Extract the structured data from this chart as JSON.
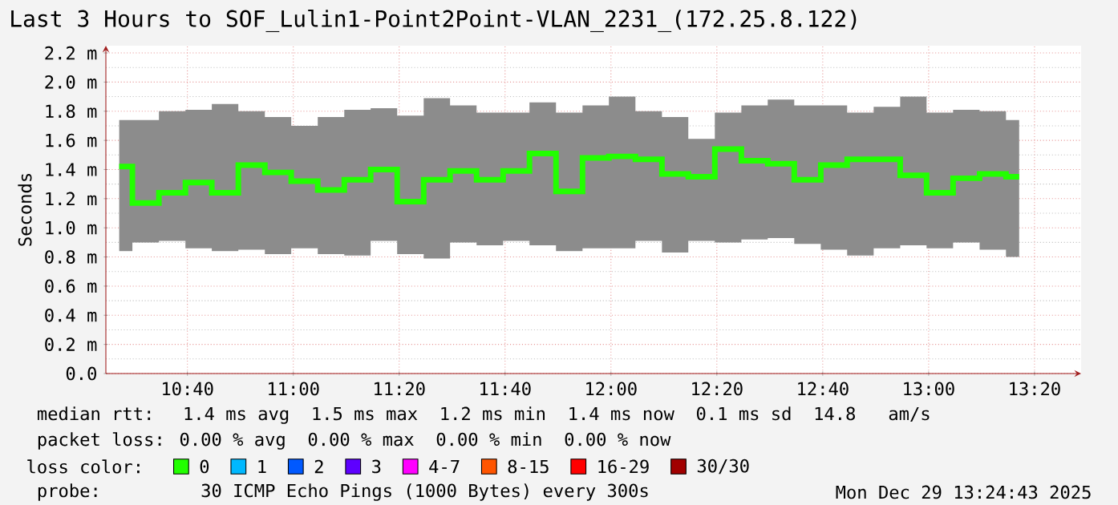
{
  "chart_data": {
    "type": "step",
    "title": "Last 3 Hours to SOF_Lulin1-Point2Point-VLAN_2231_(172.25.8.122)",
    "ylabel": "Seconds",
    "legend_title": "loss color:",
    "xlim": [
      10.41,
      13.48
    ],
    "ylim": [
      0,
      2.25
    ],
    "xticks": [
      {
        "value": 10.6667,
        "label": "10:40"
      },
      {
        "value": 11,
        "label": "11:00"
      },
      {
        "value": 11.3333,
        "label": "11:20"
      },
      {
        "value": 11.6667,
        "label": "11:40"
      },
      {
        "value": 12,
        "label": "12:00"
      },
      {
        "value": 12.3333,
        "label": "12:20"
      },
      {
        "value": 12.6667,
        "label": "12:40"
      },
      {
        "value": 13,
        "label": "13:00"
      },
      {
        "value": 13.3333,
        "label": "13:20"
      }
    ],
    "yticks": [
      {
        "value": 0,
        "label": "0.0"
      },
      {
        "value": 0.2,
        "label": "0.2 m"
      },
      {
        "value": 0.4,
        "label": "0.4 m"
      },
      {
        "value": 0.6,
        "label": "0.6 m"
      },
      {
        "value": 0.8,
        "label": "0.8 m"
      },
      {
        "value": 1.0,
        "label": "1.0 m"
      },
      {
        "value": 1.2,
        "label": "1.2 m"
      },
      {
        "value": 1.4,
        "label": "1.4 m"
      },
      {
        "value": 1.6,
        "label": "1.6 m"
      },
      {
        "value": 1.8,
        "label": "1.8 m"
      },
      {
        "value": 2.0,
        "label": "2.0 m"
      },
      {
        "value": 2.2,
        "label": "2.2 m"
      }
    ],
    "grid": true,
    "legend": "bottom",
    "series": [
      {
        "name": "0",
        "color": "#22ff00",
        "x": [
          10.452,
          10.535,
          10.619,
          10.702,
          10.785,
          10.869,
          10.952,
          11.035,
          11.119,
          11.202,
          11.285,
          11.369,
          11.452,
          11.535,
          11.619,
          11.702,
          11.785,
          11.869,
          11.952,
          12.035,
          12.119,
          12.202,
          12.285,
          12.369,
          12.452,
          12.535,
          12.619,
          12.702,
          12.785,
          12.869,
          12.952,
          13.035,
          13.119,
          13.202,
          13.285
        ],
        "values": [
          1.42,
          1.17,
          1.24,
          1.31,
          1.24,
          1.43,
          1.38,
          1.32,
          1.26,
          1.33,
          1.4,
          1.18,
          1.33,
          1.39,
          1.33,
          1.39,
          1.51,
          1.25,
          1.48,
          1.49,
          1.47,
          1.37,
          1.35,
          1.54,
          1.46,
          1.44,
          1.33,
          1.43,
          1.47,
          1.47,
          1.36,
          1.24,
          1.34,
          1.37,
          1.35
        ],
        "lower": [
          0.84,
          0.9,
          0.91,
          0.86,
          0.84,
          0.85,
          0.82,
          0.86,
          0.82,
          0.81,
          0.91,
          0.82,
          0.79,
          0.9,
          0.88,
          0.91,
          0.88,
          0.84,
          0.86,
          0.86,
          0.91,
          0.83,
          0.91,
          0.9,
          0.92,
          0.93,
          0.89,
          0.85,
          0.81,
          0.86,
          0.88,
          0.86,
          0.9,
          0.85,
          0.8
        ],
        "upper": [
          1.74,
          1.74,
          1.8,
          1.81,
          1.85,
          1.8,
          1.76,
          1.7,
          1.76,
          1.81,
          1.82,
          1.77,
          1.89,
          1.84,
          1.79,
          1.79,
          1.86,
          1.79,
          1.84,
          1.9,
          1.8,
          1.76,
          1.61,
          1.79,
          1.84,
          1.88,
          1.84,
          1.84,
          1.79,
          1.83,
          1.9,
          1.79,
          1.81,
          1.8,
          1.74
        ]
      },
      {
        "name": "1",
        "color": "#00b8ff",
        "values": [
          null
        ]
      },
      {
        "name": "2",
        "color": "#0059ff",
        "values": [
          null
        ]
      },
      {
        "name": "3",
        "color": "#5e00ff",
        "values": [
          null
        ]
      },
      {
        "name": "4-7",
        "color": "#ff00ff",
        "values": [
          null
        ]
      },
      {
        "name": "8-15",
        "color": "#ff5500",
        "values": [
          null
        ]
      },
      {
        "name": "16-29",
        "color": "#ff0000",
        "values": [
          null
        ]
      },
      {
        "name": "30/30",
        "color": "#a10000",
        "values": [
          null
        ]
      }
    ],
    "annotations": [
      "median rtt:  1.4 ms avg  1.5 ms max  1.2 ms min  1.4 ms now  0.1 ms sd  14.8   am/s",
      "packet loss: 0.00 % avg  0.00 % max  0.00 % min  0.00 % now",
      "probe:       30 ICMP Echo Pings (1000 Bytes) every 300s",
      "Mon Dec 29 13:24:43 2025"
    ]
  }
}
